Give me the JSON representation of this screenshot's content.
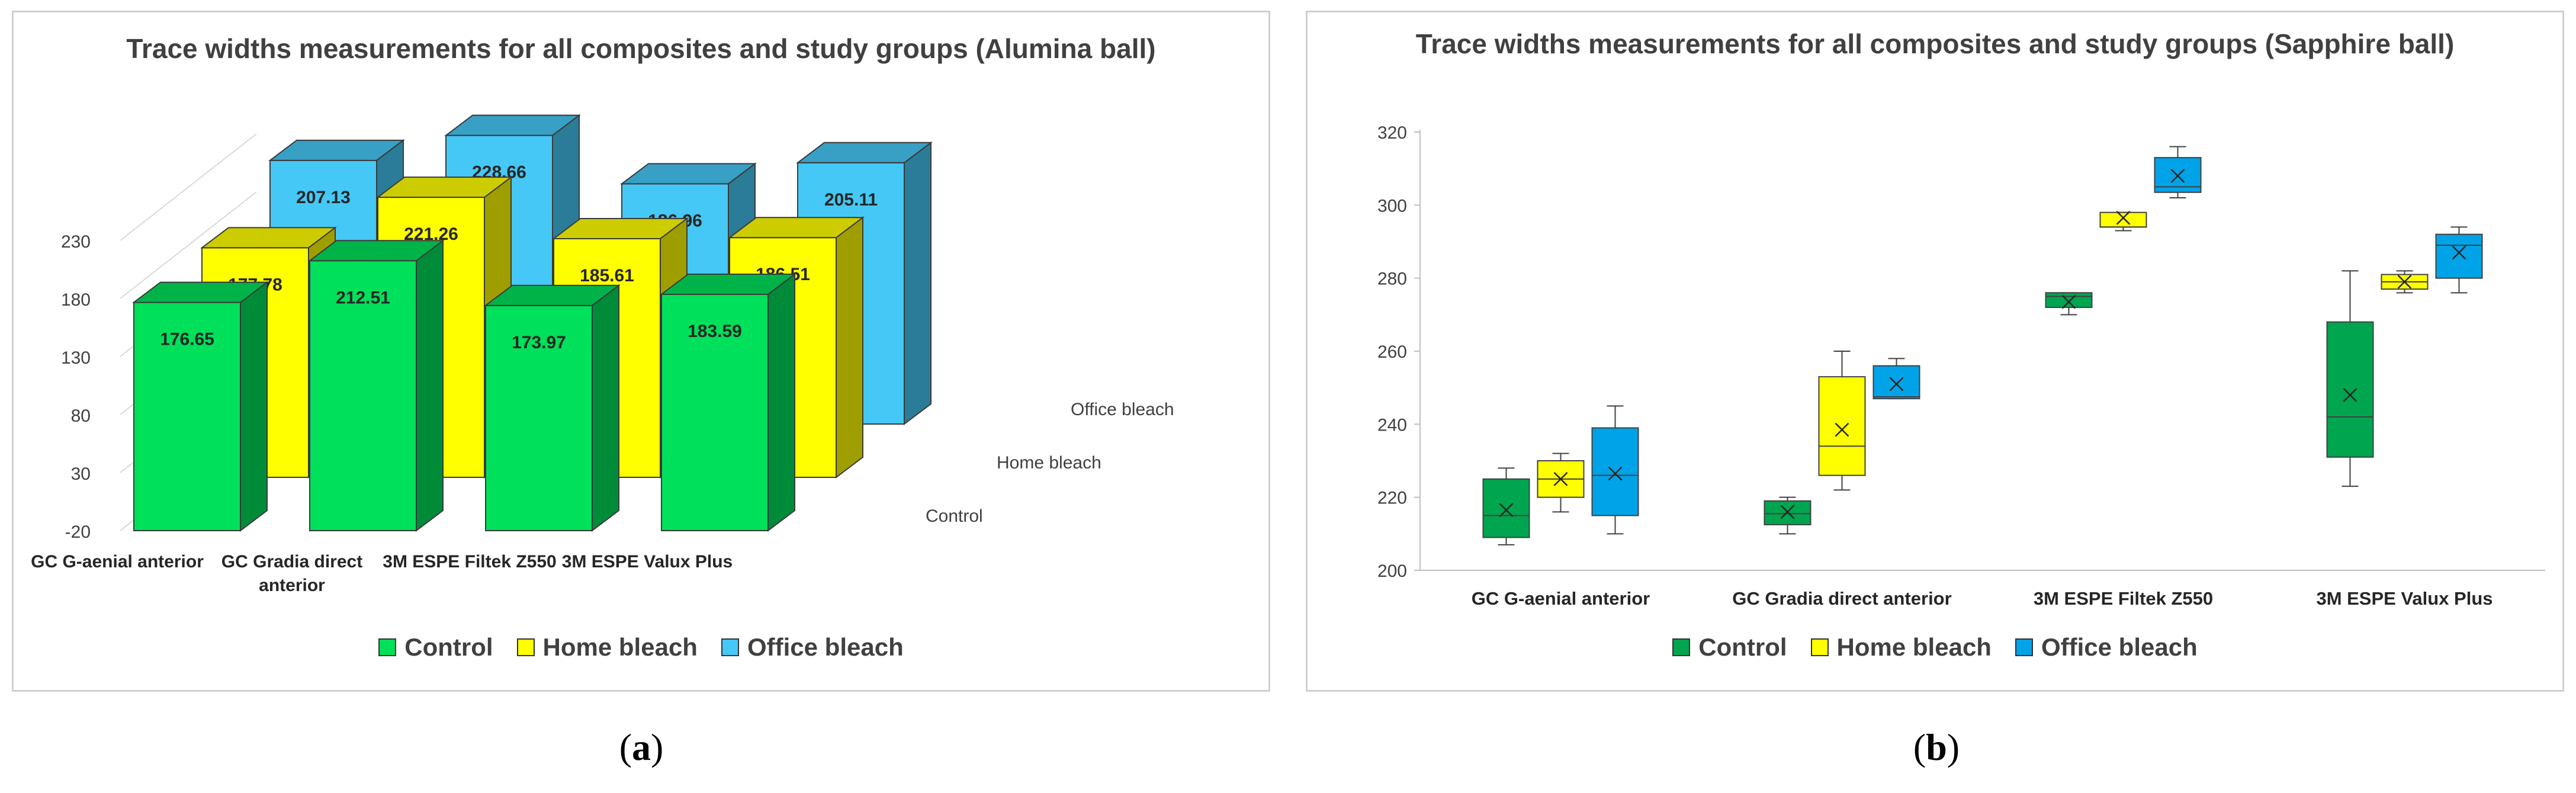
{
  "figure": {
    "caption_a": {
      "open": "(",
      "letter": "a",
      "close": ")"
    },
    "caption_b": {
      "open": "(",
      "letter": "b",
      "close": ")"
    }
  },
  "chart_data": [
    {
      "type": "bar",
      "variant": "3d-clustered-depth",
      "title": "Trace widths measurements for all composites and study groups (Alumina ball)",
      "categories": [
        "GC G-aenial anterior",
        "GC Gradia direct anterior",
        "3M ESPE Filtek Z550",
        "3M ESPE Valux Plus"
      ],
      "series": [
        {
          "name": "Control",
          "values": [
            176.65,
            212.51,
            173.97,
            183.59
          ],
          "color": "#00E05A"
        },
        {
          "name": "Home bleach",
          "values": [
            177.78,
            221.26,
            185.61,
            186.51
          ],
          "color": "#FFFF00"
        },
        {
          "name": "Office bleach",
          "values": [
            207.13,
            228.66,
            186.96,
            205.11
          ],
          "color": "#45C8F5"
        }
      ],
      "depth_labels": [
        "Control",
        "Home bleach",
        "Office bleach"
      ],
      "yticks": [
        -20,
        30,
        80,
        130,
        180,
        230
      ],
      "ylim": [
        -20,
        230
      ],
      "legend": "bottom",
      "grid": false
    },
    {
      "type": "box",
      "title": "Trace widths measurements for all composites and study groups (Sapphire ball)",
      "categories": [
        "GC G-aenial anterior",
        "GC Gradia direct anterior",
        "3M ESPE Filtek Z550",
        "3M ESPE Valux Plus"
      ],
      "ylim": [
        200,
        320
      ],
      "yticks": [
        200,
        220,
        240,
        260,
        280,
        300,
        320
      ],
      "legend": "bottom",
      "grid": false,
      "mean_marker": "x",
      "series": [
        {
          "name": "Control",
          "color": "#00A54F",
          "boxes": [
            {
              "min": 207,
              "q1": 209,
              "median": 215,
              "q3": 225,
              "max": 228,
              "mean": 216.5
            },
            {
              "min": 210,
              "q1": 212.5,
              "median": 215.5,
              "q3": 219,
              "max": 220,
              "mean": 216
            },
            {
              "min": 270,
              "q1": 272,
              "median": 275,
              "q3": 276,
              "max": 276,
              "mean": 273.5
            },
            {
              "min": 223,
              "q1": 231,
              "median": 242,
              "q3": 268,
              "max": 282,
              "mean": 248
            }
          ]
        },
        {
          "name": "Home bleach",
          "color": "#FFFF00",
          "boxes": [
            {
              "min": 216,
              "q1": 220,
              "median": 225,
              "q3": 230,
              "max": 232,
              "mean": 225
            },
            {
              "min": 222,
              "q1": 226,
              "median": 234,
              "q3": 253,
              "max": 260,
              "mean": 238.5
            },
            {
              "min": 293,
              "q1": 294,
              "median": 294,
              "q3": 298,
              "max": 298,
              "mean": 296.5
            },
            {
              "min": 276,
              "q1": 277,
              "median": 279,
              "q3": 281,
              "max": 282,
              "mean": 279
            }
          ]
        },
        {
          "name": "Office bleach",
          "color": "#00A3E8",
          "boxes": [
            {
              "min": 210,
              "q1": 215,
              "median": 226,
              "q3": 239,
              "max": 245,
              "mean": 226.5
            },
            {
              "min": 247,
              "q1": 247,
              "median": 247.5,
              "q3": 256,
              "max": 258,
              "mean": 251
            },
            {
              "min": 302,
              "q1": 303.5,
              "median": 305,
              "q3": 313,
              "max": 316,
              "mean": 308
            },
            {
              "min": 276,
              "q1": 280,
              "median": 289,
              "q3": 292,
              "max": 294,
              "mean": 287
            }
          ]
        }
      ]
    }
  ]
}
